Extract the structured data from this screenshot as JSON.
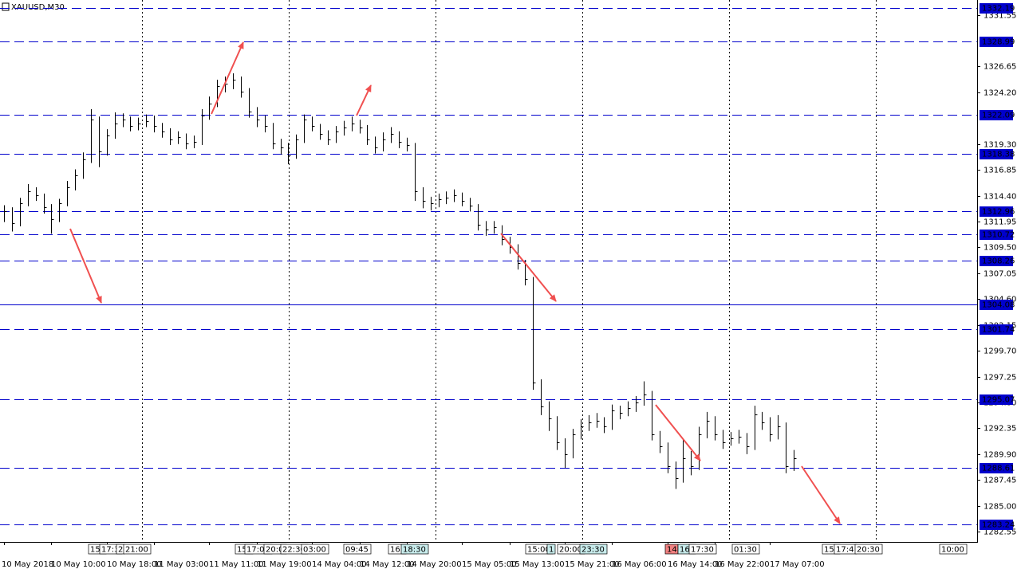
{
  "chart_data": {
    "type": "ohlc",
    "title": "XAUUSD,M30",
    "categories": [
      "10 May 2018",
      null,
      null,
      null,
      null,
      null,
      "10 May 10:00",
      null,
      null,
      null,
      null,
      null,
      null,
      "10 May 18:00",
      null,
      null,
      null,
      null,
      null,
      "11 May 03:00",
      null,
      null,
      null,
      null,
      null,
      null,
      "11 May 11:00",
      null,
      null,
      null,
      null,
      null,
      "11 May 19:00",
      null,
      null,
      null,
      null,
      null,
      null,
      "14 May 04:00",
      null,
      null,
      null,
      null,
      null,
      "14 May 12:00",
      null,
      null,
      null,
      null,
      null,
      "14 May 20:00",
      null,
      null,
      null,
      null,
      null,
      null,
      "15 May 05:00",
      null,
      null,
      null,
      null,
      null,
      "15 May 13:00",
      null,
      null,
      null,
      null,
      null,
      null,
      "15 May 21:00",
      null,
      null,
      null,
      null,
      null,
      "16 May 06:00",
      null,
      null,
      null,
      null,
      null,
      null,
      "16 May 14:00",
      null,
      null,
      null,
      null,
      null,
      "16 May 22:00",
      null,
      null,
      null,
      null,
      null,
      null,
      "17 May 07:00",
      null,
      null,
      null
    ],
    "high": [
      1313.5,
      1313.3,
      1314.2,
      1315.5,
      1315.2,
      1314.6,
      1313.6,
      1314.1,
      1315.8,
      1316.9,
      1318.5,
      1322.6,
      1321.9,
      1320.7,
      1322.3,
      1322.2,
      1321.9,
      1321.8,
      1322.1,
      1322.0,
      1321.3,
      1320.8,
      1320.5,
      1320.3,
      1320.1,
      1322.6,
      1323.8,
      1325.4,
      1325.7,
      1326.0,
      1325.7,
      1324.6,
      1322.8,
      1322.0,
      1321.3,
      1319.8,
      1319.4,
      1320.2,
      1322.1,
      1321.9,
      1321.2,
      1320.6,
      1321.0,
      1321.5,
      1321.9,
      1321.6,
      1321.1,
      1320.0,
      1320.4,
      1320.9,
      1320.5,
      1319.9,
      1319.4,
      1315.2,
      1314.3,
      1314.6,
      1314.8,
      1315.0,
      1314.7,
      1314.2,
      1313.6,
      1312.0,
      1312.0,
      1311.6,
      1310.5,
      1309.8,
      1308.3,
      1306.7,
      1297.0,
      1294.9,
      1293.5,
      1291.4,
      1292.3,
      1293.2,
      1293.6,
      1293.8,
      1293.4,
      1294.6,
      1294.5,
      1294.9,
      1295.4,
      1296.8,
      1295.9,
      1292.1,
      1291.0,
      1289.2,
      1291.4,
      1290.2,
      1292.5,
      1293.9,
      1293.5,
      1292.2,
      1292.0,
      1292.2,
      1291.9,
      1294.5,
      1293.9,
      1293.4,
      1293.6,
      1292.9,
      1290.3
    ],
    "low": [
      1311.9,
      1311.0,
      1311.5,
      1313.4,
      1313.9,
      1312.7,
      1310.8,
      1311.9,
      1313.4,
      1314.9,
      1316.0,
      1317.5,
      1317.1,
      1318.2,
      1319.8,
      1320.9,
      1320.5,
      1320.6,
      1320.9,
      1320.4,
      1319.9,
      1319.2,
      1319.3,
      1318.8,
      1318.9,
      1319.2,
      1321.6,
      1322.8,
      1324.2,
      1324.5,
      1323.7,
      1321.8,
      1320.9,
      1320.4,
      1318.8,
      1318.3,
      1317.4,
      1317.9,
      1319.4,
      1320.5,
      1319.7,
      1319.2,
      1319.4,
      1320.1,
      1320.5,
      1320.3,
      1319.2,
      1318.4,
      1318.6,
      1319.4,
      1318.9,
      1318.6,
      1313.9,
      1313.2,
      1313.0,
      1313.3,
      1313.6,
      1313.8,
      1313.4,
      1312.9,
      1311.1,
      1310.6,
      1310.8,
      1309.7,
      1308.9,
      1307.4,
      1305.9,
      1296.0,
      1293.6,
      1292.1,
      1290.3,
      1288.6,
      1289.5,
      1291.3,
      1292.1,
      1292.4,
      1291.9,
      1292.2,
      1293.2,
      1293.5,
      1293.9,
      1294.5,
      1291.2,
      1290.0,
      1288.1,
      1286.6,
      1287.2,
      1287.9,
      1288.4,
      1291.4,
      1291.2,
      1290.4,
      1290.7,
      1290.9,
      1289.9,
      1290.3,
      1292.2,
      1291.1,
      1291.3,
      1288.1,
      1288.3
    ],
    "close": [
      1312.93,
      1311.8,
      1313.69,
      1314.82,
      1314.44,
      1313.31,
      1312.18,
      1313.69,
      1315.2,
      1316.33,
      1317.84,
      1321.62,
      1318.6,
      1320.11,
      1321.24,
      1321.62,
      1321.02,
      1321.24,
      1321.47,
      1321.02,
      1320.49,
      1319.73,
      1319.96,
      1319.36,
      1319.51,
      1322.0,
      1323.13,
      1324.79,
      1325.02,
      1325.4,
      1324.26,
      1322.37,
      1321.62,
      1321.02,
      1319.36,
      1318.98,
      1318.22,
      1319.73,
      1321.62,
      1321.02,
      1320.26,
      1319.73,
      1320.49,
      1320.86,
      1321.24,
      1320.86,
      1319.73,
      1318.98,
      1319.73,
      1320.26,
      1319.51,
      1319.2,
      1314.82,
      1313.91,
      1313.69,
      1314.06,
      1314.21,
      1314.44,
      1313.91,
      1313.46,
      1311.65,
      1311.19,
      1311.42,
      1310.29,
      1309.53,
      1308.02,
      1306.51,
      1296.69,
      1294.42,
      1293.29,
      1291.02,
      1289.89,
      1291.78,
      1292.54,
      1292.91,
      1293.07,
      1292.54,
      1294.05,
      1293.82,
      1294.27,
      1294.8,
      1295.56,
      1291.78,
      1290.65,
      1288.76,
      1287.63,
      1289.52,
      1288.76,
      1291.78,
      1293.07,
      1291.78,
      1291.02,
      1291.4,
      1291.55,
      1290.65,
      1293.67,
      1292.91,
      1291.78,
      1292.54,
      1288.76,
      1289.52
    ],
    "color": "#000000",
    "ylim": [
      1281.58,
      1332.95
    ],
    "yticks": [
      1331.55,
      1326.65,
      {
        "value": 1324.2,
        "label": "1324.20"
      },
      {
        "value": 1319.3,
        "label": "1319.30"
      },
      1316.85,
      {
        "value": 1314.4,
        "label": "1314.40"
      },
      1311.95,
      {
        "value": 1309.5,
        "label": "1309.50"
      },
      1307.05,
      {
        "value": 1304.6,
        "label": "1304.60"
      },
      1302.15,
      {
        "value": 1299.7,
        "label": "1299.70"
      },
      1297.25,
      {
        "value": 1294.8,
        "label": "1294.80"
      },
      1292.35,
      {
        "value": 1289.9,
        "label": "1289.90"
      },
      1287.45,
      {
        "value": 1285.0,
        "label": "1285.00"
      },
      1282.55
    ],
    "levels": [
      1332.19,
      1328.99,
      1322.09,
      1318.38,
      1312.96,
      1310.72,
      1308.26,
      1304.08,
      1301.74,
      1295.07,
      1288.61,
      1283.24
    ],
    "level_styles": [
      "dashed",
      "dashed",
      "dashed",
      "dashed",
      "dashed",
      "dashed",
      "dashed",
      "solid",
      "dashed",
      "dashed",
      "dashed",
      "dashed"
    ],
    "level_color": "#0000cc",
    "time_markers": [
      "15:",
      "17:3",
      "2",
      "21:00",
      "15:",
      "17:00",
      "20:0",
      "22:30",
      "03:00",
      "09:45",
      "16:",
      "18:30",
      "15:00",
      "1",
      "20:00",
      "23:30",
      "14",
      "16:",
      "17:30",
      "01:30",
      "15:",
      "17:4",
      "20:30",
      "10:00"
    ]
  }
}
